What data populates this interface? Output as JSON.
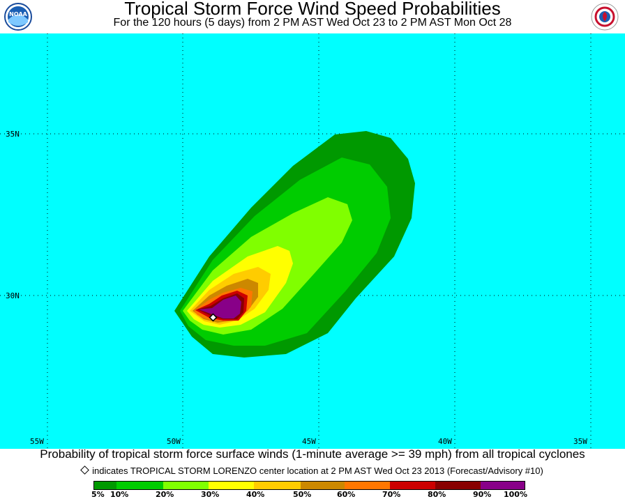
{
  "header": {
    "title": "Tropical Storm Force Wind Speed Probabilities",
    "subtitle": "For the 120 hours (5 days) from 2 PM AST Wed Oct 23 to 2 PM AST Mon Oct 28",
    "logo_left": "noaa-logo",
    "logo_right": "national-weather-service-logo",
    "logo_left_text": "NOAA"
  },
  "map": {
    "background_color": "#00ffff",
    "lat_labels": [
      "35N",
      "30N"
    ],
    "lon_labels": [
      "55W",
      "50W",
      "45W",
      "40W",
      "35W"
    ],
    "storm_marker": "center-location-diamond"
  },
  "caption": "Probability of tropical storm force surface winds (1-minute average >= 39 mph) from all tropical cyclones",
  "note": "indicates TROPICAL STORM LORENZO center location at 2 PM AST Wed Oct 23 2013 (Forecast/Advisory #10)",
  "legend": {
    "colors": [
      "#009900",
      "#00cc00",
      "#80ff00",
      "#ffff00",
      "#ffcc00",
      "#cc8800",
      "#ff7700",
      "#cc0000",
      "#880000",
      "#880088"
    ],
    "labels": [
      "5%",
      "10%",
      "20%",
      "30%",
      "40%",
      "50%",
      "60%",
      "70%",
      "80%",
      "90%",
      "100%"
    ]
  }
}
